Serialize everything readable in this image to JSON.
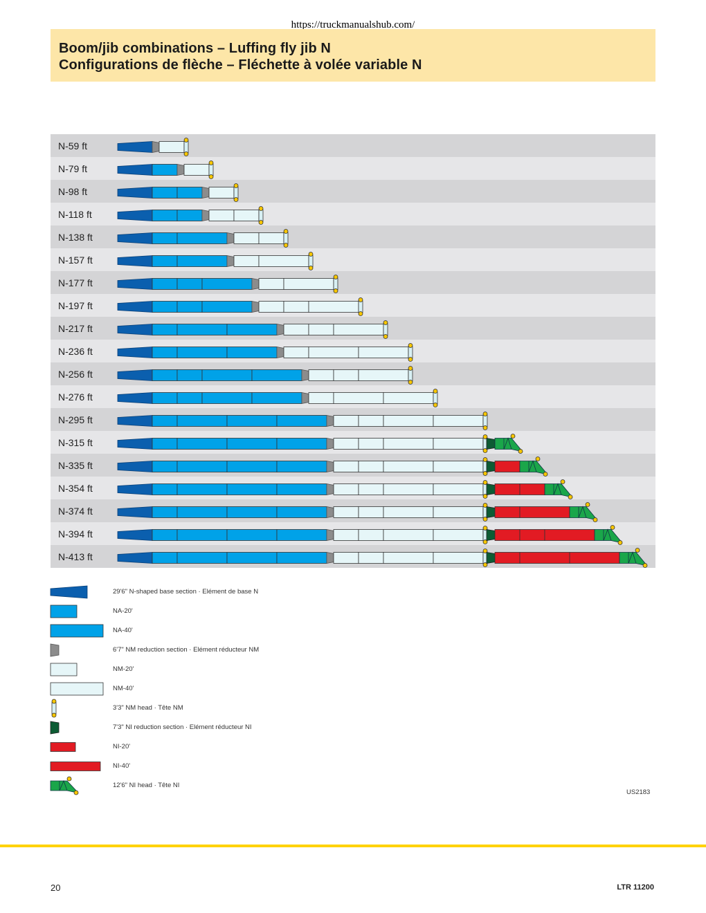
{
  "source_url": "https://truckmanualshub.com/",
  "title_en": "Boom/jib combinations – Luffing fly jib N",
  "title_fr": "Configurations de flèche – Fléchette à volée variable N",
  "colors": {
    "base": "#0b5fae",
    "na": "#00a2e8",
    "nm_reduction": "#8c8c8c",
    "nm": "#e6f6f8",
    "ni_reduction": "#0d5c34",
    "ni": "#e21b23",
    "ni_head": "#1aa64a",
    "pin": "#f7c600",
    "row_dark": "#d4d4d6",
    "row_light": "#e6e6e8"
  },
  "configurations": [
    {
      "label": "N-59 ft",
      "main": [
        "base",
        "nmr"
      ],
      "nm": [
        "nm20"
      ],
      "ni": null
    },
    {
      "label": "N-79 ft",
      "main": [
        "base",
        "na20",
        "nmr"
      ],
      "nm": [
        "nm20"
      ],
      "ni": null
    },
    {
      "label": "N-98 ft",
      "main": [
        "base",
        "na20",
        "na20",
        "nmr"
      ],
      "nm": [
        "nm20"
      ],
      "ni": null
    },
    {
      "label": "N-118 ft",
      "main": [
        "base",
        "na20",
        "na20",
        "nmr"
      ],
      "nm": [
        "nm20",
        "nm20"
      ],
      "ni": null
    },
    {
      "label": "N-138 ft",
      "main": [
        "base",
        "na20",
        "na40",
        "nmr"
      ],
      "nm": [
        "nm20",
        "nm20"
      ],
      "ni": null
    },
    {
      "label": "N-157 ft",
      "main": [
        "base",
        "na20",
        "na40",
        "nmr"
      ],
      "nm": [
        "nm20",
        "nm40"
      ],
      "ni": null
    },
    {
      "label": "N-177 ft",
      "main": [
        "base",
        "na20",
        "na20",
        "na40",
        "nmr"
      ],
      "nm": [
        "nm20",
        "nm40"
      ],
      "ni": null
    },
    {
      "label": "N-197 ft",
      "main": [
        "base",
        "na20",
        "na20",
        "na40",
        "nmr"
      ],
      "nm": [
        "nm20",
        "nm20",
        "nm40"
      ],
      "ni": null
    },
    {
      "label": "N-217 ft",
      "main": [
        "base",
        "na20",
        "na40",
        "na40",
        "nmr"
      ],
      "nm": [
        "nm20",
        "nm20",
        "nm40"
      ],
      "ni": null
    },
    {
      "label": "N-236 ft",
      "main": [
        "base",
        "na20",
        "na40",
        "na40",
        "nmr"
      ],
      "nm": [
        "nm20",
        "nm40",
        "nm40"
      ],
      "ni": null
    },
    {
      "label": "N-256 ft",
      "main": [
        "base",
        "na20",
        "na20",
        "na40",
        "na40",
        "nmr"
      ],
      "nm": [
        "nm20",
        "nm20",
        "nm40"
      ],
      "ni": null
    },
    {
      "label": "N-276 ft",
      "main": [
        "base",
        "na20",
        "na20",
        "na40",
        "na40",
        "nmr"
      ],
      "nm": [
        "nm20",
        "nm40",
        "nm40"
      ],
      "ni": null
    },
    {
      "label": "N-295 ft",
      "main": [
        "base",
        "na20",
        "na40",
        "na40",
        "na40",
        "nmr"
      ],
      "nm": [
        "nm20",
        "nm20",
        "nm40",
        "nm40"
      ],
      "ni": null
    },
    {
      "label": "N-315 ft",
      "main": [
        "base",
        "na20",
        "na40",
        "na40",
        "na40",
        "nmr"
      ],
      "nm": [
        "nm20",
        "nm20",
        "nm40",
        "nm40"
      ],
      "ni": []
    },
    {
      "label": "N-335 ft",
      "main": [
        "base",
        "na20",
        "na40",
        "na40",
        "na40",
        "nmr"
      ],
      "nm": [
        "nm20",
        "nm20",
        "nm40",
        "nm40"
      ],
      "ni": [
        "ni20"
      ]
    },
    {
      "label": "N-354 ft",
      "main": [
        "base",
        "na20",
        "na40",
        "na40",
        "na40",
        "nmr"
      ],
      "nm": [
        "nm20",
        "nm20",
        "nm40",
        "nm40"
      ],
      "ni": [
        "ni20",
        "ni20"
      ]
    },
    {
      "label": "N-374 ft",
      "main": [
        "base",
        "na20",
        "na40",
        "na40",
        "na40",
        "nmr"
      ],
      "nm": [
        "nm20",
        "nm20",
        "nm40",
        "nm40"
      ],
      "ni": [
        "ni20",
        "ni40"
      ]
    },
    {
      "label": "N-394 ft",
      "main": [
        "base",
        "na20",
        "na40",
        "na40",
        "na40",
        "nmr"
      ],
      "nm": [
        "nm20",
        "nm20",
        "nm40",
        "nm40"
      ],
      "ni": [
        "ni20",
        "ni20",
        "ni40"
      ]
    },
    {
      "label": "N-413 ft",
      "main": [
        "base",
        "na20",
        "na40",
        "na40",
        "na40",
        "nmr"
      ],
      "nm": [
        "nm20",
        "nm20",
        "nm40",
        "nm40"
      ],
      "ni": [
        "ni20",
        "ni40",
        "ni40"
      ]
    }
  ],
  "legend": [
    {
      "kind": "base",
      "label": "29'6\" N-shaped base section ·  Elément de base N"
    },
    {
      "kind": "na20",
      "label": "NA-20'"
    },
    {
      "kind": "na40",
      "label": "NA-40'"
    },
    {
      "kind": "nmr",
      "label": "6'7\" NM reduction section · Elément réducteur NM"
    },
    {
      "kind": "nm20",
      "label": "NM-20'"
    },
    {
      "kind": "nm40",
      "label": "NM-40'"
    },
    {
      "kind": "nmhead",
      "label": "3'3\" NM head · Tête NM"
    },
    {
      "kind": "nir",
      "label": "7'3\" NI reduction section · Elément réducteur NI"
    },
    {
      "kind": "ni20",
      "label": "NI-20'"
    },
    {
      "kind": "ni40",
      "label": "NI-40'"
    },
    {
      "kind": "nihead",
      "label": "12'6\" NI head · Tête NI"
    }
  ],
  "drawing_code": "US2183",
  "page_number": "20",
  "model": "LTR 11200"
}
